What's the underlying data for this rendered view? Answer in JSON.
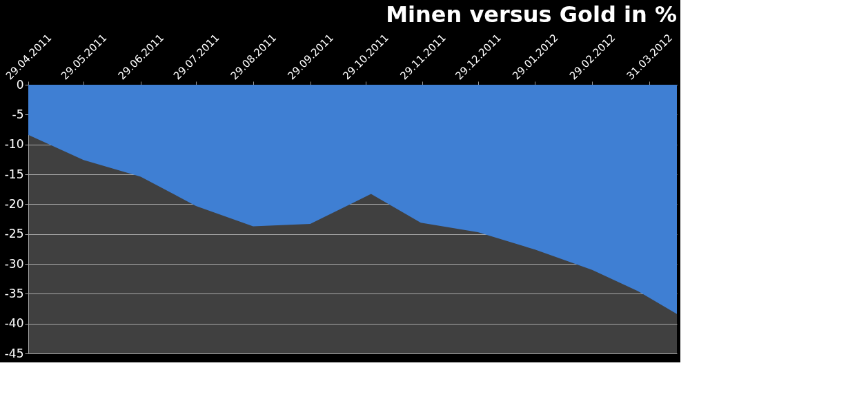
{
  "chart_data": {
    "type": "area",
    "title": "Minen versus Gold in %",
    "x": [
      "2011-04-29",
      "2011-05-29",
      "2011-06-29",
      "2011-07-29",
      "2011-08-29",
      "2011-09-29",
      "2011-11-01",
      "2011-11-28",
      "2011-12-29",
      "2012-01-29",
      "2012-02-29",
      "2012-03-25",
      "2012-04-15"
    ],
    "series": [
      {
        "color": "#3f7fd3",
        "values": [
          -8.4,
          -12.6,
          -15.4,
          -20.3,
          -23.7,
          -23.3,
          -18.3,
          -23.1,
          -24.7,
          -27.6,
          -31.0,
          -34.6,
          -38.4
        ]
      }
    ],
    "xlim": [
      "2011-04-29",
      "2012-04-15"
    ],
    "xticks": [
      {
        "value": "2011-04-29",
        "label": "29.04.2011"
      },
      {
        "value": "2011-05-29",
        "label": "29.05.2011"
      },
      {
        "value": "2011-06-29",
        "label": "29.06.2011"
      },
      {
        "value": "2011-07-29",
        "label": "29.07.2011"
      },
      {
        "value": "2011-08-29",
        "label": "29.08.2011"
      },
      {
        "value": "2011-09-29",
        "label": "29.09.2011"
      },
      {
        "value": "2011-10-29",
        "label": "29.10.2011"
      },
      {
        "value": "2011-11-29",
        "label": "29.11.2011"
      },
      {
        "value": "2011-12-29",
        "label": "29.12.2011"
      },
      {
        "value": "2012-01-29",
        "label": "29.01.2012"
      },
      {
        "value": "2012-02-29",
        "label": "29.02.2012"
      },
      {
        "value": "2012-03-31",
        "label": "31.03.2012"
      }
    ],
    "ylim": [
      -45,
      0
    ],
    "yticks": [
      -45,
      -40,
      -35,
      -30,
      -25,
      -20,
      -15,
      -10,
      -5,
      0
    ],
    "grid": "y",
    "marker": "none"
  }
}
